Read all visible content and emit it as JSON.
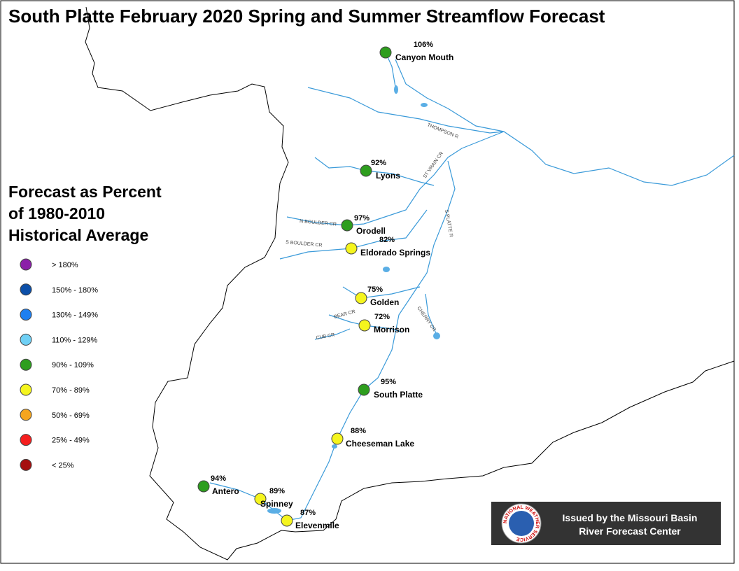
{
  "header": {
    "title": "South Platte February 2020 Spring and Summer Streamflow Forecast"
  },
  "legend": {
    "title": [
      "Forecast as Percent",
      "of 1980-2010",
      "Historical Average"
    ],
    "entries": [
      {
        "label": "> 180%",
        "color": "#8b1fa8"
      },
      {
        "label": "150% - 180%",
        "color": "#0b4fa8"
      },
      {
        "label": "130% - 149%",
        "color": "#1e7ff0"
      },
      {
        "label": "110% - 129%",
        "color": "#6fd0f5"
      },
      {
        "label": "90% - 109%",
        "color": "#2e9e1e"
      },
      {
        "label": "70% - 89%",
        "color": "#f5f51e"
      },
      {
        "label": "50% - 69%",
        "color": "#f5a51e"
      },
      {
        "label": "25% - 49%",
        "color": "#f51e1e"
      },
      {
        "label": "< 25%",
        "color": "#a51010"
      }
    ]
  },
  "stations": [
    {
      "name": "Canyon Mouth",
      "percent": "106%",
      "class": 4
    },
    {
      "name": "Lyons",
      "percent": "92%",
      "class": 4
    },
    {
      "name": "Orodell",
      "percent": "97%",
      "class": 4
    },
    {
      "name": "Eldorado Springs",
      "percent": "82%",
      "class": 5
    },
    {
      "name": "Golden",
      "percent": "75%",
      "class": 5
    },
    {
      "name": "Morrison",
      "percent": "72%",
      "class": 5
    },
    {
      "name": "South Platte",
      "percent": "95%",
      "class": 4
    },
    {
      "name": "Cheeseman Lake",
      "percent": "88%",
      "class": 5
    },
    {
      "name": "Antero",
      "percent": "94%",
      "class": 4
    },
    {
      "name": "Spinney",
      "percent": "89%",
      "class": 5
    },
    {
      "name": "Elevenmile",
      "percent": "87%",
      "class": 5
    }
  ],
  "rivers": [
    "THOMPSON R",
    "ST VRAIN CR",
    "S PLATTE R",
    "N BOULDER CR",
    "S BOULDER CR",
    "BEAR CR",
    "CUB CR",
    "CHERRY CR"
  ],
  "badge": {
    "logo_text": "NATIONAL WEATHER SERVICE",
    "lines": [
      "Issued by the Missouri Basin",
      "River Forecast Center"
    ]
  }
}
